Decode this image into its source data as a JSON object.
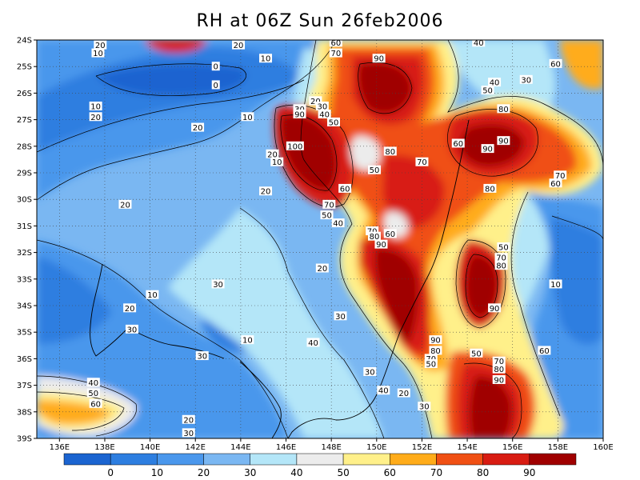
{
  "title": "RH at 06Z Sun 26feb2006",
  "x_ticks": [
    "136E",
    "138E",
    "140E",
    "142E",
    "144E",
    "146E",
    "148E",
    "150E",
    "152E",
    "154E",
    "156E",
    "158E",
    "160E"
  ],
  "y_ticks": [
    "24S",
    "25S",
    "26S",
    "27S",
    "28S",
    "29S",
    "30S",
    "31S",
    "32S",
    "33S",
    "34S",
    "35S",
    "36S",
    "37S",
    "38S",
    "39S"
  ],
  "colorbar": {
    "colors": [
      "#1b64d0",
      "#2d7ee0",
      "#4a97ec",
      "#7ab7f2",
      "#b4e6f8",
      "#ececec",
      "#fff08a",
      "#ffac1a",
      "#f05014",
      "#d81c12",
      "#a00000"
    ],
    "labels": [
      "0",
      "10",
      "20",
      "30",
      "40",
      "50",
      "60",
      "70",
      "80",
      "90"
    ]
  },
  "contour_labels": [
    {
      "t": "20",
      "lon": 143.9,
      "lat": -24.2
    },
    {
      "t": "20",
      "lon": 137.8,
      "lat": -24.2
    },
    {
      "t": "10",
      "lon": 137.7,
      "lat": -24.5
    },
    {
      "t": "10",
      "lon": 145.1,
      "lat": -24.7
    },
    {
      "t": "0",
      "lon": 142.9,
      "lat": -25.0
    },
    {
      "t": "0",
      "lon": 142.9,
      "lat": -25.7
    },
    {
      "t": "60",
      "lon": 148.2,
      "lat": -24.1
    },
    {
      "t": "70",
      "lon": 148.2,
      "lat": -24.5
    },
    {
      "t": "90",
      "lon": 150.1,
      "lat": -24.7
    },
    {
      "t": "40",
      "lon": 154.5,
      "lat": -24.1
    },
    {
      "t": "60",
      "lon": 157.9,
      "lat": -24.9
    },
    {
      "t": "40",
      "lon": 155.2,
      "lat": -25.6
    },
    {
      "t": "30",
      "lon": 156.6,
      "lat": -25.5
    },
    {
      "t": "50",
      "lon": 154.9,
      "lat": -25.9
    },
    {
      "t": "10",
      "lon": 137.6,
      "lat": -26.5
    },
    {
      "t": "20",
      "lon": 137.6,
      "lat": -26.9
    },
    {
      "t": "10",
      "lon": 144.3,
      "lat": -26.9
    },
    {
      "t": "20",
      "lon": 142.1,
      "lat": -27.3
    },
    {
      "t": "20",
      "lon": 147.3,
      "lat": -26.3
    },
    {
      "t": "30",
      "lon": 147.6,
      "lat": -26.5
    },
    {
      "t": "30",
      "lon": 146.6,
      "lat": -26.6
    },
    {
      "t": "40",
      "lon": 147.7,
      "lat": -26.8
    },
    {
      "t": "90",
      "lon": 146.6,
      "lat": -26.8
    },
    {
      "t": "50",
      "lon": 148.1,
      "lat": -27.1
    },
    {
      "t": "80",
      "lon": 155.6,
      "lat": -26.6
    },
    {
      "t": "90",
      "lon": 155.6,
      "lat": -27.8
    },
    {
      "t": "60",
      "lon": 153.6,
      "lat": -27.9
    },
    {
      "t": "90",
      "lon": 154.9,
      "lat": -28.1
    },
    {
      "t": "100",
      "lon": 146.4,
      "lat": -28.0
    },
    {
      "t": "20",
      "lon": 145.4,
      "lat": -28.3
    },
    {
      "t": "10",
      "lon": 145.6,
      "lat": -28.6
    },
    {
      "t": "80",
      "lon": 150.6,
      "lat": -28.2
    },
    {
      "t": "70",
      "lon": 152.0,
      "lat": -28.6
    },
    {
      "t": "50",
      "lon": 149.9,
      "lat": -28.9
    },
    {
      "t": "70",
      "lon": 158.1,
      "lat": -29.1
    },
    {
      "t": "60",
      "lon": 157.9,
      "lat": -29.4
    },
    {
      "t": "80",
      "lon": 155.0,
      "lat": -29.6
    },
    {
      "t": "20",
      "lon": 145.1,
      "lat": -29.7
    },
    {
      "t": "60",
      "lon": 148.6,
      "lat": -29.6
    },
    {
      "t": "20",
      "lon": 138.9,
      "lat": -30.2
    },
    {
      "t": "70",
      "lon": 147.9,
      "lat": -30.2
    },
    {
      "t": "50",
      "lon": 147.8,
      "lat": -30.6
    },
    {
      "t": "40",
      "lon": 148.3,
      "lat": -30.9
    },
    {
      "t": "70",
      "lon": 149.8,
      "lat": -31.2
    },
    {
      "t": "60",
      "lon": 150.6,
      "lat": -31.3
    },
    {
      "t": "80",
      "lon": 149.9,
      "lat": -31.4
    },
    {
      "t": "90",
      "lon": 150.2,
      "lat": -31.7
    },
    {
      "t": "50",
      "lon": 155.6,
      "lat": -31.8
    },
    {
      "t": "70",
      "lon": 155.5,
      "lat": -32.2
    },
    {
      "t": "80",
      "lon": 155.5,
      "lat": -32.5
    },
    {
      "t": "20",
      "lon": 147.6,
      "lat": -32.6
    },
    {
      "t": "30",
      "lon": 143.0,
      "lat": -33.2
    },
    {
      "t": "10",
      "lon": 157.9,
      "lat": -33.2
    },
    {
      "t": "10",
      "lon": 140.1,
      "lat": -33.6
    },
    {
      "t": "90",
      "lon": 155.2,
      "lat": -34.1
    },
    {
      "t": "20",
      "lon": 139.1,
      "lat": -34.1
    },
    {
      "t": "30",
      "lon": 148.4,
      "lat": -34.4
    },
    {
      "t": "30",
      "lon": 139.2,
      "lat": -34.9
    },
    {
      "t": "10",
      "lon": 144.3,
      "lat": -35.3
    },
    {
      "t": "40",
      "lon": 147.2,
      "lat": -35.4
    },
    {
      "t": "90",
      "lon": 152.6,
      "lat": -35.3
    },
    {
      "t": "80",
      "lon": 152.6,
      "lat": -35.7
    },
    {
      "t": "60",
      "lon": 157.4,
      "lat": -35.7
    },
    {
      "t": "30",
      "lon": 142.3,
      "lat": -35.9
    },
    {
      "t": "50",
      "lon": 154.4,
      "lat": -35.8
    },
    {
      "t": "70",
      "lon": 152.4,
      "lat": -36.0
    },
    {
      "t": "50",
      "lon": 152.4,
      "lat": -36.2
    },
    {
      "t": "70",
      "lon": 155.4,
      "lat": -36.1
    },
    {
      "t": "30",
      "lon": 149.7,
      "lat": -36.5
    },
    {
      "t": "80",
      "lon": 155.4,
      "lat": -36.4
    },
    {
      "t": "90",
      "lon": 155.4,
      "lat": -36.8
    },
    {
      "t": "40",
      "lon": 137.5,
      "lat": -36.9
    },
    {
      "t": "40",
      "lon": 150.3,
      "lat": -37.2
    },
    {
      "t": "50",
      "lon": 137.5,
      "lat": -37.3
    },
    {
      "t": "20",
      "lon": 151.2,
      "lat": -37.3
    },
    {
      "t": "60",
      "lon": 137.6,
      "lat": -37.7
    },
    {
      "t": "30",
      "lon": 152.1,
      "lat": -37.8
    },
    {
      "t": "20",
      "lon": 141.7,
      "lat": -38.3
    },
    {
      "t": "30",
      "lon": 141.7,
      "lat": -38.8
    }
  ]
}
